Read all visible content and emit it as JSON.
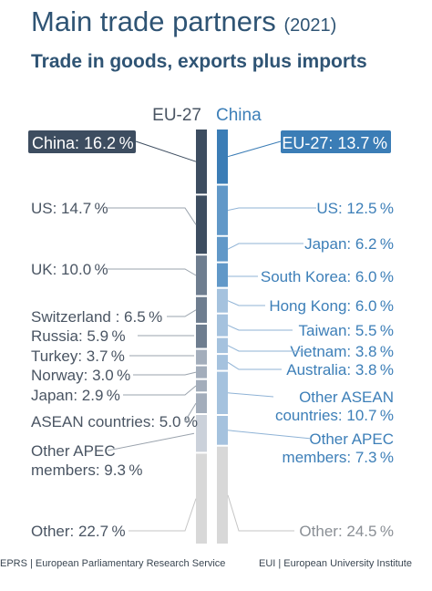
{
  "header": {
    "title": "Main trade partners",
    "year": "(2021)",
    "subtitle": "Trade in goods, exports plus imports"
  },
  "footer": {
    "left": "EPRS | European Parliamentary Research Service",
    "right": "EUI | European University Institute"
  },
  "colors": {
    "eu_dark": "#3d4d60",
    "eu_mid": "#6e7d8f",
    "eu_light": "#a3adbb",
    "eu_pale": "#cbd1da",
    "china_dark": "#3b7db6",
    "china_mid": "#6198c8",
    "china_light": "#a5c2de",
    "other": "#d8d8d8",
    "text_eu": "#4a5563",
    "text_china": "#3d7fb8"
  },
  "chart_data": {
    "type": "bar",
    "stacked": true,
    "unit": "%",
    "series": [
      {
        "name": "EU-27",
        "partners": [
          {
            "label": "China: 16.2 %",
            "value": 16.2
          },
          {
            "label": "US: 14.7 %",
            "value": 14.7
          },
          {
            "label": "UK: 10.0 %",
            "value": 10.0
          },
          {
            "label": "Switzerland : 6.5 %",
            "value": 6.5
          },
          {
            "label": "Russia: 5.9 %",
            "value": 5.9
          },
          {
            "label": "Turkey: 3.7 %",
            "value": 3.7
          },
          {
            "label": "Norway: 3.0 %",
            "value": 3.0
          },
          {
            "label": "Japan: 2.9 %",
            "value": 2.9
          },
          {
            "label": "ASEAN countries: 5.0 %",
            "value": 5.0
          },
          {
            "label": "Other APEC members: 9.3 %",
            "value": 9.3
          },
          {
            "label": "Other: 22.7 %",
            "value": 22.7
          }
        ]
      },
      {
        "name": "China",
        "partners": [
          {
            "label": "EU-27: 13.7 %",
            "value": 13.7
          },
          {
            "label": "US: 12.5 %",
            "value": 12.5
          },
          {
            "label": "Japan: 6.2 %",
            "value": 6.2
          },
          {
            "label": "South Korea: 6.0 %",
            "value": 6.0
          },
          {
            "label": "Hong Kong: 6.0 %",
            "value": 6.0
          },
          {
            "label": "Taiwan: 5.5 %",
            "value": 5.5
          },
          {
            "label": "Vietnam: 3.8 %",
            "value": 3.8
          },
          {
            "label": "Australia: 3.8 %",
            "value": 3.8
          },
          {
            "label": "Other ASEAN countries: 10.7 %",
            "value": 10.7
          },
          {
            "label": "Other APEC members: 7.3 %",
            "value": 7.3
          },
          {
            "label": "Other: 24.5 %",
            "value": 24.5
          }
        ]
      }
    ]
  }
}
